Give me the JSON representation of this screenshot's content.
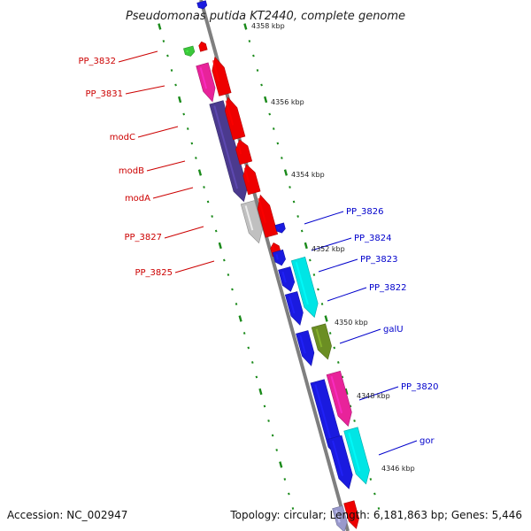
{
  "title": "Pseudomonas putida KT2440, complete genome",
  "footer": {
    "accession": "Accession: NC_002947",
    "summary": "Topology: circular; Length: 6,181,863 bp; Genes: 5,446"
  },
  "colors": {
    "backbone": "#7f7f7f",
    "ruler": "#1a8a1a",
    "reverse_label": "#cc0000",
    "forward_label": "#0000cc"
  },
  "ruler_labels": [
    "4358 kbp",
    "4356 kbp",
    "4354 kbp",
    "4352 kbp",
    "4350 kbp",
    "4348 kbp",
    "4346 kbp"
  ],
  "genes_reverse": [
    {
      "name": "PP_3832",
      "fill": "#3ac83a"
    },
    {
      "name": "PP_3831",
      "fill": "#e8239a"
    },
    {
      "name": "modC",
      "fill": "#4b3a8e"
    },
    {
      "name": "modB",
      "fill": "#4b3a8e"
    },
    {
      "name": "modA",
      "fill": "#4b3a8e"
    },
    {
      "name": "PP_3827",
      "fill": "#c0c0c0"
    },
    {
      "name": "PP_3825",
      "fill": "#ee0000"
    }
  ],
  "genes_forward": [
    {
      "name": "PP_3826",
      "fill": "#1a1adf"
    },
    {
      "name": "PP_3824",
      "fill": "#1a1adf"
    },
    {
      "name": "PP_3823",
      "fill": "#00e5e5"
    },
    {
      "name": "PP_3822",
      "fill": "#1a1adf"
    },
    {
      "name": "galU",
      "fill": "#6b8e23"
    },
    {
      "name": "PP_3820",
      "fill": "#e8239a"
    },
    {
      "name": "gor",
      "fill": "#00e5e5"
    }
  ]
}
